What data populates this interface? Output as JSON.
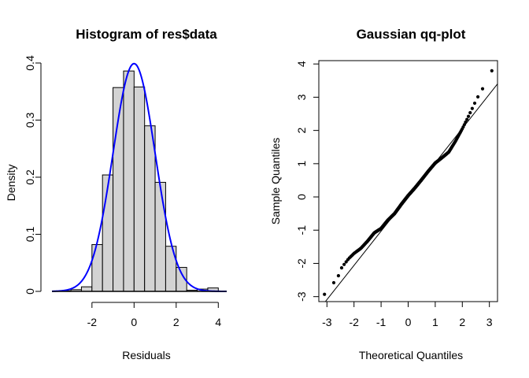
{
  "chart_data": [
    {
      "type": "histogram",
      "title": "Histogram of res$data",
      "xlabel": "Residuals",
      "ylabel": "Density",
      "xlim": [
        -3.9,
        4.4
      ],
      "ylim": [
        0,
        0.4
      ],
      "xticks": [
        -2,
        0,
        2,
        4
      ],
      "yticks": [
        0,
        0.1,
        0.2,
        0.3,
        0.4
      ],
      "bins": [
        {
          "x0": -3.5,
          "x1": -3.0,
          "density": 0.001
        },
        {
          "x0": -3.0,
          "x1": -2.5,
          "density": 0.003
        },
        {
          "x0": -2.5,
          "x1": -2.0,
          "density": 0.008
        },
        {
          "x0": -2.0,
          "x1": -1.5,
          "density": 0.082
        },
        {
          "x0": -1.5,
          "x1": -1.0,
          "density": 0.204
        },
        {
          "x0": -1.0,
          "x1": -0.5,
          "density": 0.357
        },
        {
          "x0": -0.5,
          "x1": 0.0,
          "density": 0.386
        },
        {
          "x0": 0.0,
          "x1": 0.5,
          "density": 0.358
        },
        {
          "x0": 0.5,
          "x1": 1.0,
          "density": 0.29
        },
        {
          "x0": 1.0,
          "x1": 1.5,
          "density": 0.191
        },
        {
          "x0": 1.5,
          "x1": 2.0,
          "density": 0.079
        },
        {
          "x0": 2.0,
          "x1": 2.5,
          "density": 0.042
        },
        {
          "x0": 2.5,
          "x1": 3.0,
          "density": 0.002
        },
        {
          "x0": 3.0,
          "x1": 3.5,
          "density": 0.004
        },
        {
          "x0": 3.5,
          "x1": 4.0,
          "density": 0.006
        }
      ],
      "curve": {
        "type": "normal-density",
        "mean": 0,
        "sd": 1
      },
      "bar_fill": "#d3d3d3",
      "curve_color": "#0000ff"
    },
    {
      "type": "scatter",
      "title": "Gaussian qq-plot",
      "xlabel": "Theoretical Quantiles",
      "ylabel": "Sample Quantiles",
      "xlim": [
        -3.3,
        3.3
      ],
      "ylim": [
        -3.15,
        4.1
      ],
      "xticks": [
        -3,
        -2,
        -1,
        0,
        1,
        2,
        3
      ],
      "yticks": [
        -3,
        -2,
        -1,
        0,
        1,
        2,
        3,
        4
      ],
      "n": 500,
      "points_profile": [
        [
          -3.08,
          -2.93
        ],
        [
          -2.88,
          -2.73
        ],
        [
          -2.72,
          -2.55
        ],
        [
          -2.6,
          -2.42
        ],
        [
          -2.45,
          -2.12
        ],
        [
          -2.2,
          -1.86
        ],
        [
          -2.0,
          -1.7
        ],
        [
          -1.75,
          -1.55
        ],
        [
          -1.5,
          -1.33
        ],
        [
          -1.25,
          -1.08
        ],
        [
          -1.0,
          -0.95
        ],
        [
          -0.75,
          -0.7
        ],
        [
          -0.5,
          -0.5
        ],
        [
          -0.25,
          -0.22
        ],
        [
          0.0,
          0.04
        ],
        [
          0.25,
          0.27
        ],
        [
          0.5,
          0.52
        ],
        [
          0.75,
          0.78
        ],
        [
          1.0,
          1.02
        ],
        [
          1.25,
          1.18
        ],
        [
          1.5,
          1.35
        ],
        [
          1.75,
          1.68
        ],
        [
          2.0,
          2.05
        ],
        [
          2.2,
          2.38
        ],
        [
          2.4,
          2.72
        ],
        [
          2.55,
          2.98
        ],
        [
          2.72,
          3.18
        ],
        [
          2.9,
          3.65
        ],
        [
          3.0,
          3.72
        ],
        [
          3.12,
          3.82
        ]
      ],
      "reference_line": {
        "intercept": 0,
        "slope": 1.03
      },
      "point_color": "#000000"
    }
  ]
}
